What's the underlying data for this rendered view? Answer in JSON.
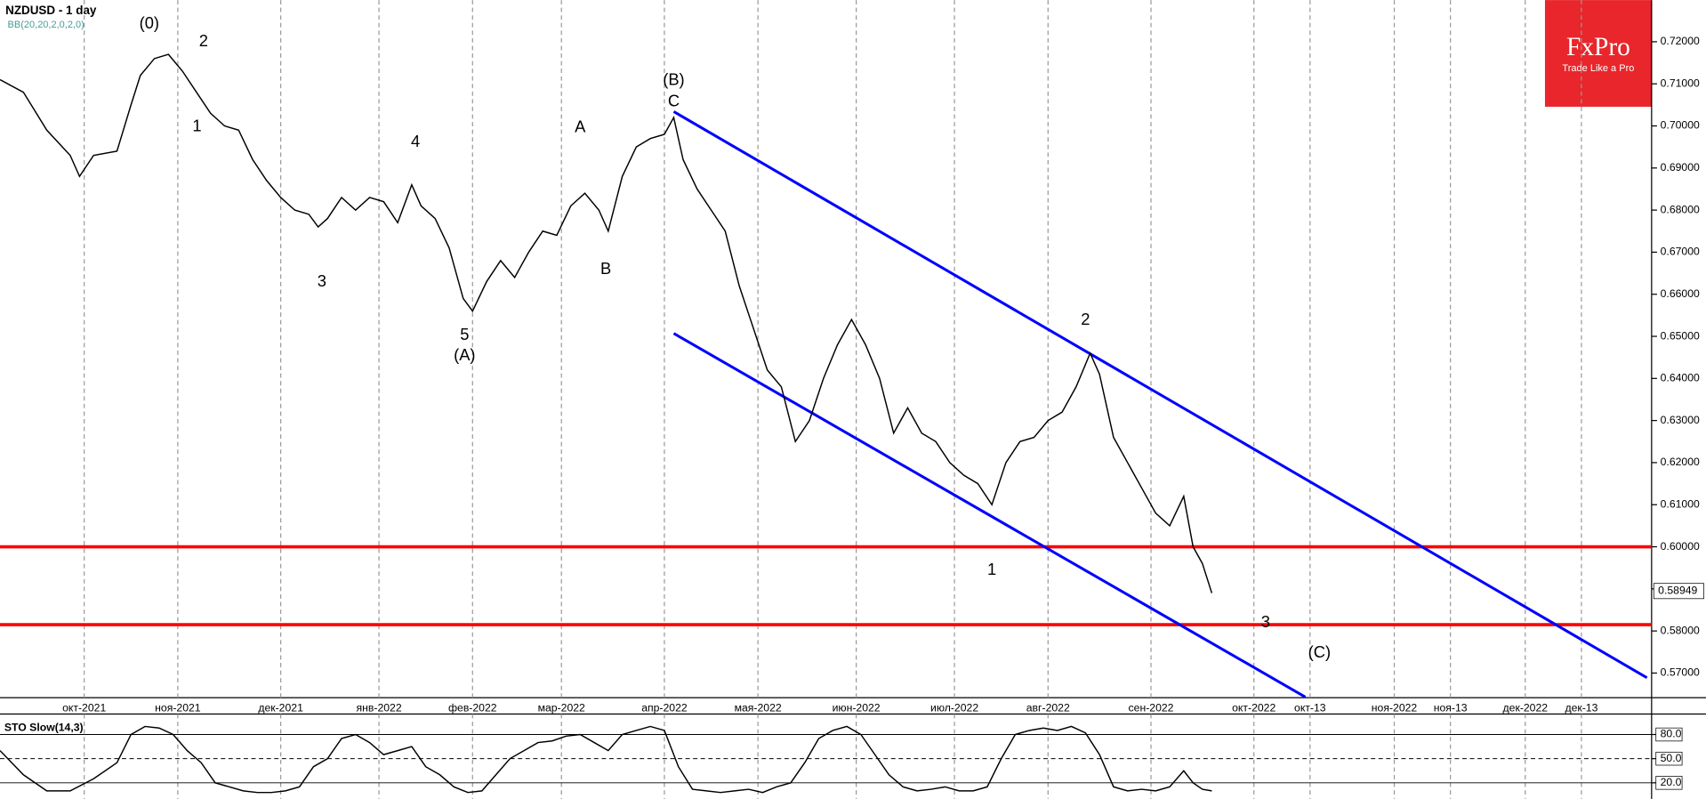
{
  "chart_data": [
    {
      "type": "line",
      "title": "NZDUSD - 1 day",
      "subtitle": "BB(20,20,2,0,2,0)",
      "color": "#000000",
      "x": [
        0,
        5,
        10,
        15,
        17,
        20,
        25,
        28,
        30,
        33,
        36,
        39,
        42,
        45,
        48,
        51,
        54,
        57,
        60,
        63,
        66,
        68,
        70,
        73,
        76,
        79,
        82,
        85,
        88,
        90,
        93,
        96,
        99,
        101,
        104,
        107,
        110,
        113,
        116,
        119,
        122,
        125,
        128,
        130,
        133,
        136,
        139,
        142,
        144,
        146,
        149,
        152,
        155,
        158,
        161,
        164,
        167,
        170,
        173,
        176,
        179,
        182,
        185,
        188,
        191,
        194,
        197,
        200,
        203,
        206,
        209,
        212,
        215,
        218,
        221,
        224,
        227,
        230,
        233,
        235,
        238,
        241,
        244,
        247,
        250,
        253,
        255,
        257,
        259
      ],
      "values": [
        0.711,
        0.708,
        0.699,
        0.693,
        0.688,
        0.693,
        0.694,
        0.705,
        0.712,
        0.716,
        0.717,
        0.713,
        0.708,
        0.703,
        0.7,
        0.699,
        0.692,
        0.687,
        0.683,
        0.68,
        0.679,
        0.676,
        0.678,
        0.683,
        0.68,
        0.683,
        0.682,
        0.677,
        0.686,
        0.681,
        0.678,
        0.671,
        0.659,
        0.656,
        0.663,
        0.668,
        0.664,
        0.67,
        0.675,
        0.674,
        0.681,
        0.684,
        0.68,
        0.675,
        0.688,
        0.695,
        0.697,
        0.698,
        0.702,
        0.692,
        0.685,
        0.68,
        0.675,
        0.662,
        0.652,
        0.642,
        0.638,
        0.625,
        0.63,
        0.64,
        0.648,
        0.654,
        0.648,
        0.64,
        0.627,
        0.633,
        0.627,
        0.625,
        0.62,
        0.617,
        0.615,
        0.61,
        0.62,
        0.625,
        0.626,
        0.63,
        0.632,
        0.638,
        0.646,
        0.641,
        0.626,
        0.62,
        0.614,
        0.608,
        0.605,
        0.612,
        0.6,
        0.596,
        0.589
      ],
      "xlim": [
        0,
        353
      ],
      "xticks": [
        {
          "value": 18,
          "label": "окт-2021"
        },
        {
          "value": 38,
          "label": "ноя-2021"
        },
        {
          "value": 60,
          "label": "дек-2021"
        },
        {
          "value": 81,
          "label": "янв-2022"
        },
        {
          "value": 101,
          "label": "фев-2022"
        },
        {
          "value": 120,
          "label": "мар-2022"
        },
        {
          "value": 142,
          "label": "апр-2022"
        },
        {
          "value": 162,
          "label": "мая-2022"
        },
        {
          "value": 183,
          "label": "июн-2022"
        },
        {
          "value": 204,
          "label": "июл-2022"
        },
        {
          "value": 224,
          "label": "авг-2022"
        },
        {
          "value": 246,
          "label": "сен-2022"
        },
        {
          "value": 268,
          "label": "окт-2022"
        },
        {
          "value": 280,
          "label": "окт-13"
        },
        {
          "value": 298,
          "label": "ноя-2022"
        },
        {
          "value": 310,
          "label": "ноя-13"
        },
        {
          "value": 326,
          "label": "дек-2022"
        },
        {
          "value": 338,
          "label": "дек-13"
        }
      ],
      "ylim": [
        0.5644,
        0.7299
      ],
      "yticks": [
        {
          "value": 0.57,
          "label": "0.57000"
        },
        {
          "value": 0.58,
          "label": "0.58000"
        },
        {
          "value": 0.59,
          "label": "0.59000"
        },
        {
          "value": 0.6,
          "label": "0.60000"
        },
        {
          "value": 0.61,
          "label": "0.61000"
        },
        {
          "value": 0.62,
          "label": "0.62000"
        },
        {
          "value": 0.63,
          "label": "0.63000"
        },
        {
          "value": 0.64,
          "label": "0.64000"
        },
        {
          "value": 0.65,
          "label": "0.65000"
        },
        {
          "value": 0.66,
          "label": "0.66000"
        },
        {
          "value": 0.67,
          "label": "0.67000"
        },
        {
          "value": 0.68,
          "label": "0.68000"
        },
        {
          "value": 0.69,
          "label": "0.69000"
        },
        {
          "value": 0.7,
          "label": "0.70000"
        },
        {
          "value": 0.71,
          "label": "0.71000"
        },
        {
          "value": 0.72,
          "label": "0.72000"
        }
      ],
      "grid": true,
      "last_price": 0.58949,
      "hlines": [
        {
          "value": 0.6,
          "color": "#ff0000"
        },
        {
          "value": 0.5815,
          "color": "#ff0000"
        }
      ],
      "channels": [
        {
          "x": [
            144,
            352
          ],
          "values": [
            0.7034,
            0.5689
          ],
          "color": "#0000ff"
        },
        {
          "x": [
            144,
            279
          ],
          "values": [
            0.6507,
            0.5643
          ],
          "color": "#0000ff"
        }
      ],
      "annotations": [
        {
          "text": "(0)",
          "x": 31.9,
          "y": 0.7242
        },
        {
          "text": "1",
          "x": 42.1,
          "y": 0.6998
        },
        {
          "text": "2",
          "x": 43.5,
          "y": 0.72
        },
        {
          "text": "3",
          "x": 68.8,
          "y": 0.6629
        },
        {
          "text": "4",
          "x": 88.8,
          "y": 0.6961
        },
        {
          "text": "5",
          "x": 99.3,
          "y": 0.6502
        },
        {
          "text": "(A)",
          "x": 99.3,
          "y": 0.6453
        },
        {
          "text": "A",
          "x": 124,
          "y": 0.6995
        },
        {
          "text": "B",
          "x": 129.5,
          "y": 0.6658
        },
        {
          "text": "(B)",
          "x": 144,
          "y": 0.7107
        },
        {
          "text": "C",
          "x": 144,
          "y": 0.7057
        },
        {
          "text": "1",
          "x": 212,
          "y": 0.5944
        },
        {
          "text": "2",
          "x": 232,
          "y": 0.6538
        },
        {
          "text": "3",
          "x": 270.5,
          "y": 0.5819
        },
        {
          "text": "(C)",
          "x": 282,
          "y": 0.5747
        }
      ]
    },
    {
      "type": "line",
      "title": "STO Slow(14,3)",
      "color": "#000000",
      "x": [
        0,
        5,
        10,
        15,
        20,
        25,
        28,
        31,
        34,
        37,
        40,
        43,
        46,
        49,
        52,
        55,
        58,
        61,
        64,
        67,
        70,
        73,
        76,
        79,
        82,
        85,
        88,
        91,
        94,
        97,
        100,
        103,
        106,
        109,
        112,
        115,
        118,
        121,
        124,
        127,
        130,
        133,
        136,
        139,
        142,
        145,
        148,
        151,
        154,
        157,
        160,
        163,
        166,
        169,
        172,
        175,
        178,
        181,
        184,
        187,
        190,
        193,
        196,
        199,
        202,
        205,
        208,
        211,
        214,
        217,
        220,
        223,
        226,
        229,
        232,
        235,
        238,
        241,
        244,
        247,
        250,
        253,
        255,
        257,
        259
      ],
      "values": [
        60,
        30,
        10,
        10,
        25,
        45,
        80,
        90,
        88,
        80,
        60,
        45,
        20,
        15,
        10,
        8,
        8,
        10,
        15,
        40,
        50,
        75,
        80,
        70,
        55,
        60,
        65,
        40,
        30,
        15,
        8,
        10,
        30,
        50,
        60,
        70,
        72,
        78,
        80,
        70,
        60,
        80,
        85,
        90,
        85,
        40,
        12,
        10,
        8,
        10,
        12,
        8,
        15,
        20,
        45,
        75,
        85,
        90,
        80,
        55,
        30,
        15,
        10,
        12,
        15,
        10,
        10,
        15,
        50,
        80,
        85,
        88,
        85,
        90,
        82,
        55,
        15,
        10,
        12,
        10,
        15,
        35,
        20,
        12,
        10
      ],
      "xlim": [
        0,
        353
      ],
      "ylim": [
        0,
        100
      ],
      "yticks": [
        {
          "value": 20,
          "label": "20.0"
        },
        {
          "value": 50,
          "label": "50.0"
        },
        {
          "value": 80,
          "label": "80.0"
        }
      ]
    }
  ],
  "logo": {
    "title": "FxPro",
    "tagline": "Trade Like a Pro"
  }
}
